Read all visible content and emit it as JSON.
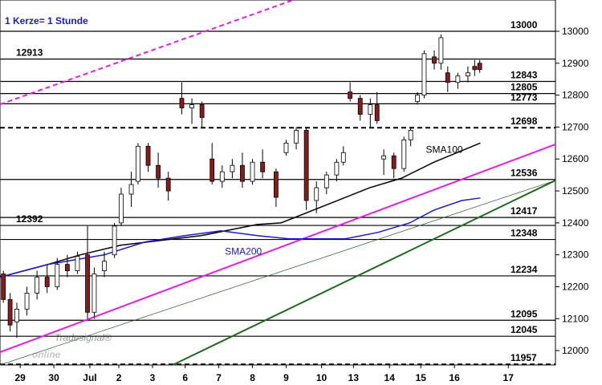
{
  "chart_data": {
    "type": "candlestick",
    "title": "1 Kerze= 1 Stunde",
    "logo": {
      "small": "Tradesignal®",
      "big": "online"
    },
    "xlim": [
      0,
      165
    ],
    "xticks": [
      {
        "value": 6,
        "label": "29"
      },
      {
        "value": 16,
        "label": "30"
      },
      {
        "value": 26.7,
        "label": "Jul"
      },
      {
        "value": 35.3,
        "label": "2"
      },
      {
        "value": 45.3,
        "label": "3"
      },
      {
        "value": 55,
        "label": "6"
      },
      {
        "value": 65,
        "label": "7"
      },
      {
        "value": 75,
        "label": "8"
      },
      {
        "value": 85,
        "label": "9"
      },
      {
        "value": 95.5,
        "label": "10"
      },
      {
        "value": 105,
        "label": "13"
      },
      {
        "value": 115.7,
        "label": "14"
      },
      {
        "value": 125,
        "label": "15"
      },
      {
        "value": 135,
        "label": "16"
      },
      {
        "value": 151,
        "label": "17"
      }
    ],
    "ylim": [
      11955,
      13098
    ],
    "yticks": [
      12000,
      12100,
      12200,
      12300,
      12400,
      12500,
      12600,
      12700,
      12800,
      12900,
      13000
    ],
    "up_color": "#ffffff",
    "down_color": "#8b1a1a",
    "x": [
      1,
      3,
      5,
      8,
      11,
      14,
      17,
      20,
      23,
      26,
      28,
      31,
      34,
      36,
      39,
      41,
      44,
      47,
      50,
      54,
      57,
      60,
      63,
      66,
      69,
      72,
      75,
      78,
      82,
      85,
      88,
      91,
      94,
      97,
      100,
      102,
      104,
      107,
      110,
      112,
      114,
      117,
      120,
      122,
      124,
      126,
      129,
      131,
      133,
      136,
      139,
      141,
      142.5
    ],
    "open": [
      12240,
      12160,
      12090,
      12130,
      12180,
      12230,
      12200,
      12270,
      12250,
      12300,
      12120,
      12250,
      12300,
      12400,
      12490,
      12530,
      12640,
      12580,
      12540,
      12790,
      12760,
      12770,
      12600,
      12530,
      12560,
      12580,
      12530,
      12590,
      12560,
      12620,
      12650,
      12690,
      12470,
      12510,
      12550,
      12590,
      12810,
      12790,
      12740,
      12770,
      12600,
      12610,
      12570,
      12660,
      12780,
      12800,
      12920,
      12900,
      12870,
      12840,
      12860,
      12890,
      12900
    ],
    "high": [
      12250,
      12180,
      12150,
      12200,
      12250,
      12270,
      12290,
      12300,
      12310,
      12390,
      12260,
      12310,
      12400,
      12510,
      12560,
      12650,
      12650,
      12620,
      12560,
      12840,
      12790,
      12780,
      12650,
      12580,
      12600,
      12620,
      12600,
      12630,
      12570,
      12660,
      12700,
      12700,
      12530,
      12560,
      12600,
      12640,
      12840,
      12800,
      12790,
      12810,
      12630,
      12620,
      12670,
      12700,
      12810,
      12940,
      12940,
      12990,
      12890,
      12870,
      12890,
      12910,
      12910
    ],
    "low": [
      12150,
      12060,
      12040,
      12110,
      12160,
      12180,
      12190,
      12230,
      12240,
      12100,
      12100,
      12230,
      12290,
      12390,
      12450,
      12520,
      12560,
      12510,
      12470,
      12740,
      12710,
      12700,
      12520,
      12510,
      12540,
      12510,
      12520,
      12540,
      12450,
      12610,
      12630,
      12440,
      12430,
      12490,
      12530,
      12580,
      12780,
      12720,
      12700,
      12710,
      12550,
      12540,
      12560,
      12640,
      12770,
      12790,
      12880,
      12880,
      12810,
      12820,
      12840,
      12860,
      12870
    ],
    "close": [
      12160,
      12080,
      12130,
      12180,
      12230,
      12200,
      12270,
      12250,
      12295,
      12120,
      12240,
      12280,
      12390,
      12490,
      12520,
      12640,
      12580,
      12540,
      12500,
      12760,
      12770,
      12730,
      12530,
      12560,
      12580,
      12530,
      12590,
      12560,
      12480,
      12650,
      12690,
      12470,
      12510,
      12550,
      12590,
      12620,
      12790,
      12740,
      12770,
      12720,
      12610,
      12570,
      12660,
      12690,
      12800,
      12930,
      12900,
      12980,
      12840,
      12860,
      12870,
      12880,
      12880
    ],
    "series": [
      {
        "name": "SMA100",
        "color": "#000000",
        "x": [
          0,
          14.3,
          23.9,
          35.8,
          59.7,
          76.4,
          83.5,
          95.5,
          109.8,
          119.3,
          128.9,
          142.7
        ],
        "values": [
          12230,
          12270,
          12300,
          12330,
          12360,
          12395,
          12400,
          12450,
          12510,
          12540,
          12590,
          12650
        ]
      },
      {
        "name": "SMA200",
        "color": "#1a1acc",
        "x": [
          0,
          14.3,
          31,
          43,
          54.9,
          65.6,
          76.4,
          85.9,
          102.6,
          112.2,
          121.7,
          128.9,
          137.2,
          142.7
        ],
        "values": [
          12230,
          12270,
          12300,
          12340,
          12360,
          12375,
          12360,
          12350,
          12350,
          12370,
          12400,
          12440,
          12470,
          12478
        ]
      }
    ],
    "trendlines": [
      {
        "color": "#e020e0",
        "style": "dashed",
        "x": [
          0,
          87.1
        ],
        "values": [
          12771,
          13098
        ]
      },
      {
        "color": "#e020e0",
        "style": "solid",
        "x": [
          0,
          165
        ],
        "values": [
          11995,
          12646
        ]
      },
      {
        "color": "#2a5a2a",
        "style": "thin",
        "x": [
          0,
          165
        ],
        "values": [
          11955,
          12533
        ]
      },
      {
        "color": "#1e6b1e",
        "style": "thick",
        "x": [
          51.3,
          165
        ],
        "values": [
          11955,
          12533
        ]
      }
    ],
    "levels": [
      13000,
      12913,
      12843,
      12805,
      12773,
      12698,
      12536,
      12417,
      12392,
      12348,
      12234,
      12095,
      12045,
      11957
    ],
    "level_styles": [
      "solid",
      "solid",
      "solid",
      "solid",
      "solid",
      "dashed",
      "solid",
      "solid",
      "solid",
      "solid",
      "solid",
      "solid",
      "solid",
      "dashed"
    ],
    "level_label_sides": [
      "right",
      "left",
      "right",
      "right",
      "right",
      "right",
      "right",
      "right",
      "left",
      "right",
      "right",
      "right",
      "right",
      "right"
    ],
    "annotations": [
      {
        "text": "SMA100",
        "x": 126.5,
        "y": 12620
      },
      {
        "text": "SMA200",
        "x": 66.8,
        "y": 12300
      }
    ]
  }
}
